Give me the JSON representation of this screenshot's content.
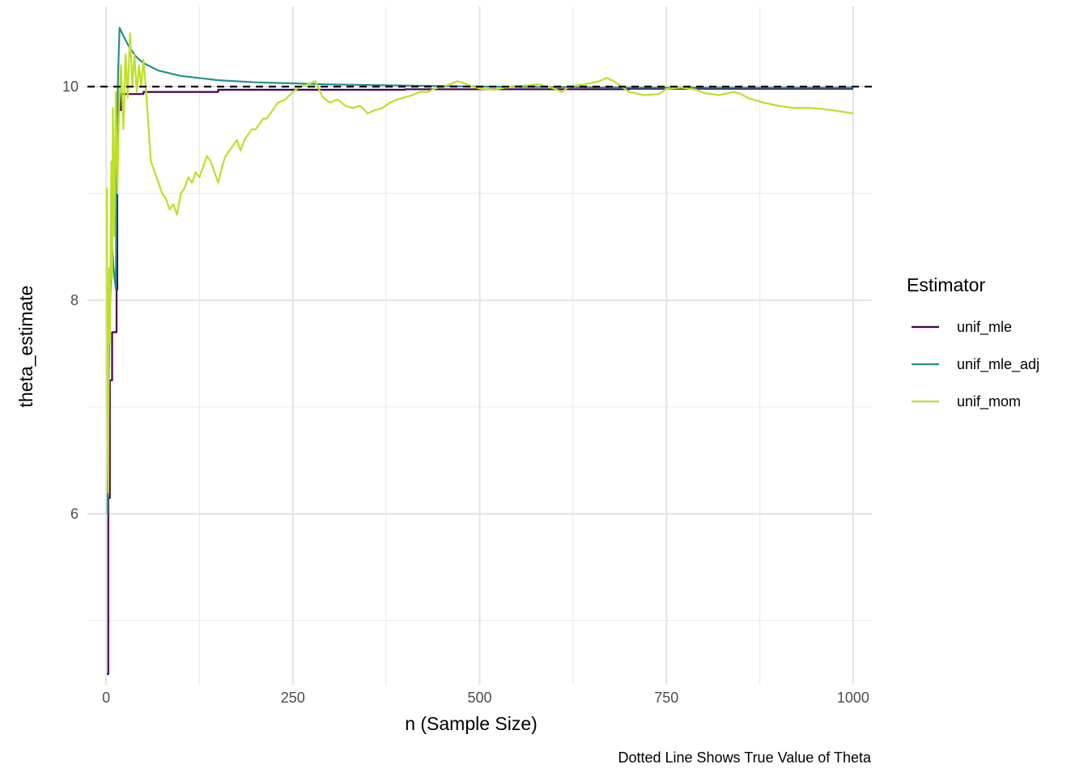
{
  "chart_data": {
    "type": "line",
    "xlabel": "n (Sample Size)",
    "ylabel": "theta_estimate",
    "caption": "Dotted Line Shows True Value of Theta",
    "xlim": [
      -25,
      1025
    ],
    "ylim": [
      4.4,
      10.75
    ],
    "x_ticks": [
      0,
      250,
      500,
      750,
      1000
    ],
    "x_tick_labels": [
      "0",
      "250",
      "500",
      "750",
      "1000"
    ],
    "x_minor_ticks": [
      125,
      375,
      625,
      875
    ],
    "y_ticks": [
      6,
      8,
      10
    ],
    "y_tick_labels": [
      "6",
      "8",
      "10"
    ],
    "y_minor_ticks": [
      5,
      7,
      9
    ],
    "grid": true,
    "reference_line": {
      "y": 10,
      "style": "dashed",
      "color": "#000000"
    },
    "legend": {
      "title": "Estimator",
      "position": "right"
    },
    "series": [
      {
        "name": "unif_mle",
        "color": "#440154",
        "points": [
          [
            1,
            4.5
          ],
          [
            3,
            4.5
          ],
          [
            3,
            6.15
          ],
          [
            5,
            6.15
          ],
          [
            5,
            7.25
          ],
          [
            8,
            7.25
          ],
          [
            8,
            7.7
          ],
          [
            14,
            7.7
          ],
          [
            14,
            8.1
          ],
          [
            15,
            8.1
          ],
          [
            15,
            9.78
          ],
          [
            20,
            9.78
          ],
          [
            20,
            9.93
          ],
          [
            50,
            9.93
          ],
          [
            50,
            9.95
          ],
          [
            150,
            9.95
          ],
          [
            150,
            9.97
          ],
          [
            400,
            9.97
          ],
          [
            400,
            9.975
          ],
          [
            700,
            9.975
          ],
          [
            700,
            9.98
          ],
          [
            1000,
            9.98
          ]
        ]
      },
      {
        "name": "unif_mle_adj",
        "color": "#21908C",
        "points": [
          [
            1,
            6.0
          ],
          [
            2,
            6.0
          ],
          [
            3,
            6.9
          ],
          [
            5,
            7.9
          ],
          [
            8,
            8.5
          ],
          [
            10,
            8.3
          ],
          [
            13,
            8.1
          ],
          [
            14,
            9.2
          ],
          [
            16,
            10.1
          ],
          [
            18,
            10.55
          ],
          [
            25,
            10.45
          ],
          [
            30,
            10.38
          ],
          [
            40,
            10.28
          ],
          [
            50,
            10.22
          ],
          [
            70,
            10.15
          ],
          [
            100,
            10.1
          ],
          [
            150,
            10.06
          ],
          [
            200,
            10.04
          ],
          [
            250,
            10.03
          ],
          [
            300,
            10.02
          ],
          [
            400,
            10.01
          ],
          [
            500,
            10.0
          ],
          [
            700,
            9.99
          ],
          [
            1000,
            9.99
          ]
        ]
      },
      {
        "name": "unif_mom",
        "color": "#BDDF26",
        "points": [
          [
            1,
            9.05
          ],
          [
            2,
            7.0
          ],
          [
            3,
            6.2
          ],
          [
            4,
            8.3
          ],
          [
            5,
            7.6
          ],
          [
            7,
            9.3
          ],
          [
            8,
            8.2
          ],
          [
            9,
            9.8
          ],
          [
            11,
            8.6
          ],
          [
            13,
            9.95
          ],
          [
            15,
            9.0
          ],
          [
            17,
            9.7
          ],
          [
            20,
            10.2
          ],
          [
            23,
            9.6
          ],
          [
            26,
            10.3
          ],
          [
            29,
            9.9
          ],
          [
            32,
            10.5
          ],
          [
            35,
            10.0
          ],
          [
            38,
            10.3
          ],
          [
            41,
            9.95
          ],
          [
            44,
            10.2
          ],
          [
            47,
            10.0
          ],
          [
            50,
            10.25
          ],
          [
            53,
            10.0
          ],
          [
            57,
            9.6
          ],
          [
            60,
            9.3
          ],
          [
            65,
            9.2
          ],
          [
            70,
            9.1
          ],
          [
            75,
            9.0
          ],
          [
            80,
            8.95
          ],
          [
            85,
            8.85
          ],
          [
            90,
            8.9
          ],
          [
            95,
            8.8
          ],
          [
            100,
            9.0
          ],
          [
            105,
            9.05
          ],
          [
            110,
            9.15
          ],
          [
            115,
            9.1
          ],
          [
            120,
            9.2
          ],
          [
            125,
            9.15
          ],
          [
            130,
            9.25
          ],
          [
            135,
            9.35
          ],
          [
            140,
            9.3
          ],
          [
            145,
            9.2
          ],
          [
            150,
            9.1
          ],
          [
            155,
            9.25
          ],
          [
            160,
            9.35
          ],
          [
            165,
            9.4
          ],
          [
            170,
            9.45
          ],
          [
            175,
            9.5
          ],
          [
            180,
            9.4
          ],
          [
            185,
            9.5
          ],
          [
            190,
            9.55
          ],
          [
            195,
            9.6
          ],
          [
            200,
            9.6
          ],
          [
            205,
            9.65
          ],
          [
            210,
            9.7
          ],
          [
            215,
            9.7
          ],
          [
            220,
            9.75
          ],
          [
            225,
            9.8
          ],
          [
            230,
            9.85
          ],
          [
            240,
            9.88
          ],
          [
            250,
            9.95
          ],
          [
            260,
            10.0
          ],
          [
            270,
            10.02
          ],
          [
            280,
            10.05
          ],
          [
            290,
            9.9
          ],
          [
            300,
            9.85
          ],
          [
            310,
            9.88
          ],
          [
            320,
            9.82
          ],
          [
            330,
            9.8
          ],
          [
            340,
            9.82
          ],
          [
            350,
            9.75
          ],
          [
            360,
            9.78
          ],
          [
            370,
            9.8
          ],
          [
            380,
            9.85
          ],
          [
            390,
            9.88
          ],
          [
            400,
            9.9
          ],
          [
            410,
            9.92
          ],
          [
            420,
            9.95
          ],
          [
            430,
            9.95
          ],
          [
            440,
            9.98
          ],
          [
            450,
            10.0
          ],
          [
            460,
            10.02
          ],
          [
            470,
            10.05
          ],
          [
            480,
            10.03
          ],
          [
            490,
            10.0
          ],
          [
            500,
            9.98
          ],
          [
            520,
            9.97
          ],
          [
            540,
            10.0
          ],
          [
            560,
            10.01
          ],
          [
            580,
            10.02
          ],
          [
            600,
            9.98
          ],
          [
            610,
            9.95
          ],
          [
            620,
            10.0
          ],
          [
            640,
            10.02
          ],
          [
            660,
            10.05
          ],
          [
            670,
            10.08
          ],
          [
            680,
            10.05
          ],
          [
            690,
            10.0
          ],
          [
            700,
            9.95
          ],
          [
            720,
            9.92
          ],
          [
            740,
            9.93
          ],
          [
            750,
            9.98
          ],
          [
            770,
            9.99
          ],
          [
            790,
            9.97
          ],
          [
            800,
            9.94
          ],
          [
            820,
            9.92
          ],
          [
            840,
            9.95
          ],
          [
            850,
            9.93
          ],
          [
            860,
            9.89
          ],
          [
            870,
            9.87
          ],
          [
            880,
            9.85
          ],
          [
            900,
            9.82
          ],
          [
            920,
            9.8
          ],
          [
            940,
            9.8
          ],
          [
            960,
            9.79
          ],
          [
            980,
            9.77
          ],
          [
            1000,
            9.75
          ]
        ]
      }
    ]
  }
}
